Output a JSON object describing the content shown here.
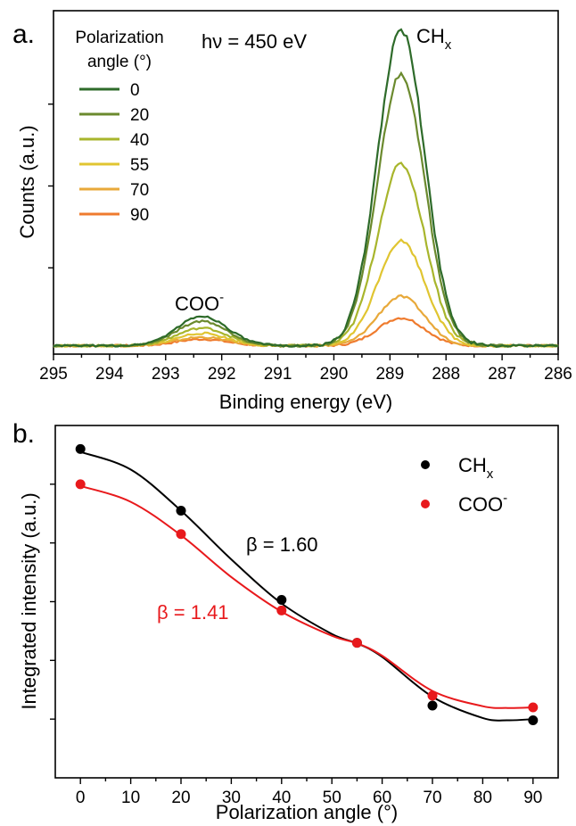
{
  "figure": {
    "panel_a_letter": "a.",
    "panel_b_letter": "b."
  },
  "chart_data": [
    {
      "type": "line",
      "panel": "a.",
      "xlabel": "Binding energy (eV)",
      "ylabel": "Counts (a.u.)",
      "xlim": [
        295,
        286
      ],
      "x_reversed": true,
      "x_ticks": [
        "295",
        "294",
        "293",
        "292",
        "291",
        "290",
        "289",
        "288",
        "287",
        "286"
      ],
      "y_tick_labels_shown": false,
      "ylim": [
        0,
        100
      ],
      "legend": {
        "title_line1": "Polarization",
        "title_line2": "angle (°)",
        "placement": "top-left"
      },
      "annotations": {
        "photon_energy": "hν = 450 eV",
        "peak_coo": "COO",
        "peak_coo_superscript": "-",
        "peak_chx": "CH",
        "peak_chx_subscript": "x"
      },
      "peak_model": {
        "baseline": 1.2,
        "chx_center_eV": 288.8,
        "chx_sigma_eV": 0.42,
        "coo_center_eV": 292.35,
        "coo_sigma_eV": 0.45
      },
      "series": [
        {
          "name": "0",
          "color": "#2e6b2a",
          "chx_height": 96.5,
          "coo_height": 9.0
        },
        {
          "name": "20",
          "color": "#6b8a2e",
          "chx_height": 83.0,
          "coo_height": 7.5
        },
        {
          "name": "40",
          "color": "#a8b52c",
          "chx_height": 55.5,
          "coo_height": 5.4
        },
        {
          "name": "55",
          "color": "#e0c531",
          "chx_height": 32.0,
          "coo_height": 3.8
        },
        {
          "name": "70",
          "color": "#e8a93a",
          "chx_height": 15.0,
          "coo_height": 2.6
        },
        {
          "name": "90",
          "color": "#ef7b2e",
          "chx_height": 8.5,
          "coo_height": 2.0
        }
      ]
    },
    {
      "type": "scatter",
      "panel": "b.",
      "xlabel": "Polarization angle (°)",
      "ylabel": "Integrated intensity (a.u.)",
      "xlim": [
        -5,
        95
      ],
      "x_ticks": [
        "0",
        "10",
        "20",
        "30",
        "40",
        "50",
        "60",
        "70",
        "80",
        "90"
      ],
      "y_tick_labels_shown": false,
      "ylim": [
        0,
        6
      ],
      "legend": {
        "placement": "top-right"
      },
      "series": [
        {
          "name": "CH",
          "name_subscript": "x",
          "color": "#000000",
          "x": [
            0,
            20,
            40,
            55,
            70,
            90
          ],
          "y": [
            5.6,
            4.55,
            3.03,
            2.3,
            1.23,
            0.98
          ],
          "fit_label": "β = 1.60",
          "fit_curve": {
            "x": [
              0,
              10,
              20,
              30,
              40,
              50,
              55,
              60,
              70,
              80,
              85,
              90
            ],
            "y": [
              5.55,
              5.25,
              4.55,
              3.72,
              2.97,
              2.45,
              2.29,
              2.06,
              1.38,
              1.02,
              0.98,
              1.0
            ]
          }
        },
        {
          "name": "COO",
          "name_superscript": "-",
          "color": "#e8191c",
          "x": [
            0,
            20,
            40,
            55,
            70,
            90
          ],
          "y": [
            5.0,
            4.15,
            2.85,
            2.3,
            1.4,
            1.2
          ],
          "fit_label": "β = 1.41",
          "fit_curve": {
            "x": [
              0,
              10,
              20,
              30,
              40,
              50,
              55,
              60,
              70,
              80,
              85,
              90
            ],
            "y": [
              4.97,
              4.7,
              4.13,
              3.42,
              2.83,
              2.42,
              2.29,
              2.08,
              1.48,
              1.22,
              1.19,
              1.2
            ]
          }
        }
      ]
    }
  ]
}
